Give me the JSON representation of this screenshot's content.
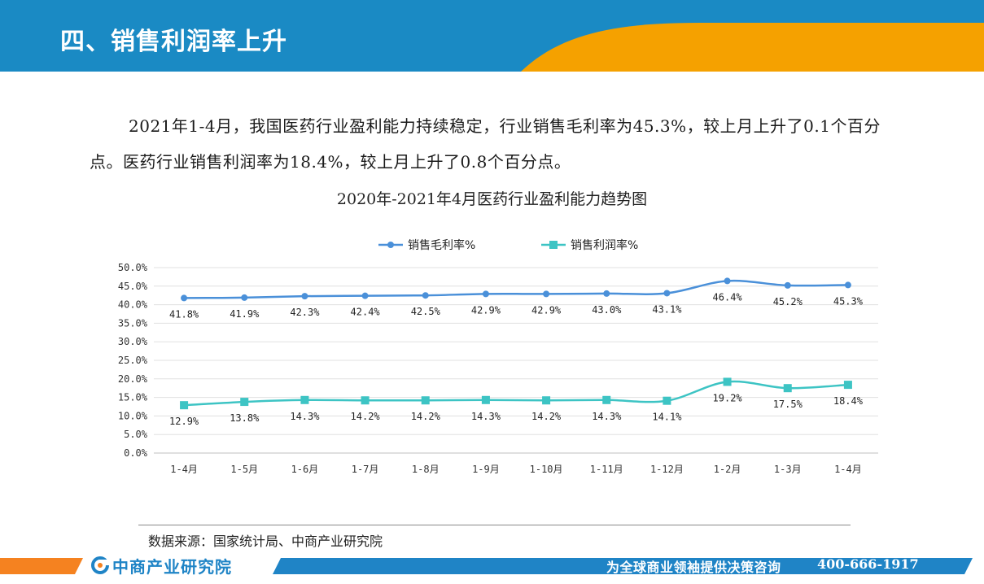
{
  "header": {
    "title": "四、销售利润率上升"
  },
  "intro": {
    "text": "2021年1-4月，我国医药行业盈利能力持续稳定，行业销售毛利率为45.3%，较上月上升了0.1个百分点。医药行业销售利润率为18.4%，较上月上升了0.8个百分点。"
  },
  "chart_data": {
    "type": "line",
    "title": "2020年-2021年4月医药行业盈利能力趋势图",
    "categories": [
      "1-4月",
      "1-5月",
      "1-6月",
      "1-7月",
      "1-8月",
      "1-9月",
      "1-10月",
      "1-11月",
      "1-12月",
      "1-2月",
      "1-3月",
      "1-4月"
    ],
    "ylim": [
      0,
      50
    ],
    "yticks": [
      "0.0%",
      "5.0%",
      "10.0%",
      "15.0%",
      "20.0%",
      "25.0%",
      "30.0%",
      "35.0%",
      "40.0%",
      "45.0%",
      "50.0%"
    ],
    "grid": true,
    "legend_position": "top",
    "series": [
      {
        "name": "销售毛利率%",
        "color": "#4a90d9",
        "marker": "circle",
        "values": [
          41.8,
          41.9,
          42.3,
          42.4,
          42.5,
          42.9,
          42.9,
          43.0,
          43.1,
          46.4,
          45.2,
          45.3
        ],
        "labels": [
          "41.8%",
          "41.9%",
          "42.3%",
          "42.4%",
          "42.5%",
          "42.9%",
          "42.9%",
          "43.0%",
          "43.1%",
          "46.4%",
          "45.2%",
          "45.3%"
        ]
      },
      {
        "name": "销售利润率%",
        "color": "#3dc4c4",
        "marker": "square",
        "values": [
          12.9,
          13.8,
          14.3,
          14.2,
          14.2,
          14.3,
          14.2,
          14.3,
          14.1,
          19.2,
          17.5,
          18.4
        ],
        "labels": [
          "12.9%",
          "13.8%",
          "14.3%",
          "14.2%",
          "14.2%",
          "14.3%",
          "14.2%",
          "14.3%",
          "14.1%",
          "19.2%",
          "17.5%",
          "18.4%"
        ]
      }
    ]
  },
  "source": {
    "text": "数据来源：国家统计局、中商产业研究院"
  },
  "footer": {
    "logo_text": "中商产业研究院",
    "slogan": "为全球商业领袖提供决策咨询",
    "phone": "400-666-1917"
  },
  "colors": {
    "header_blue": "#1a8ac4",
    "accent_orange": "#f5a100",
    "footer_blue": "#1f84c6"
  }
}
